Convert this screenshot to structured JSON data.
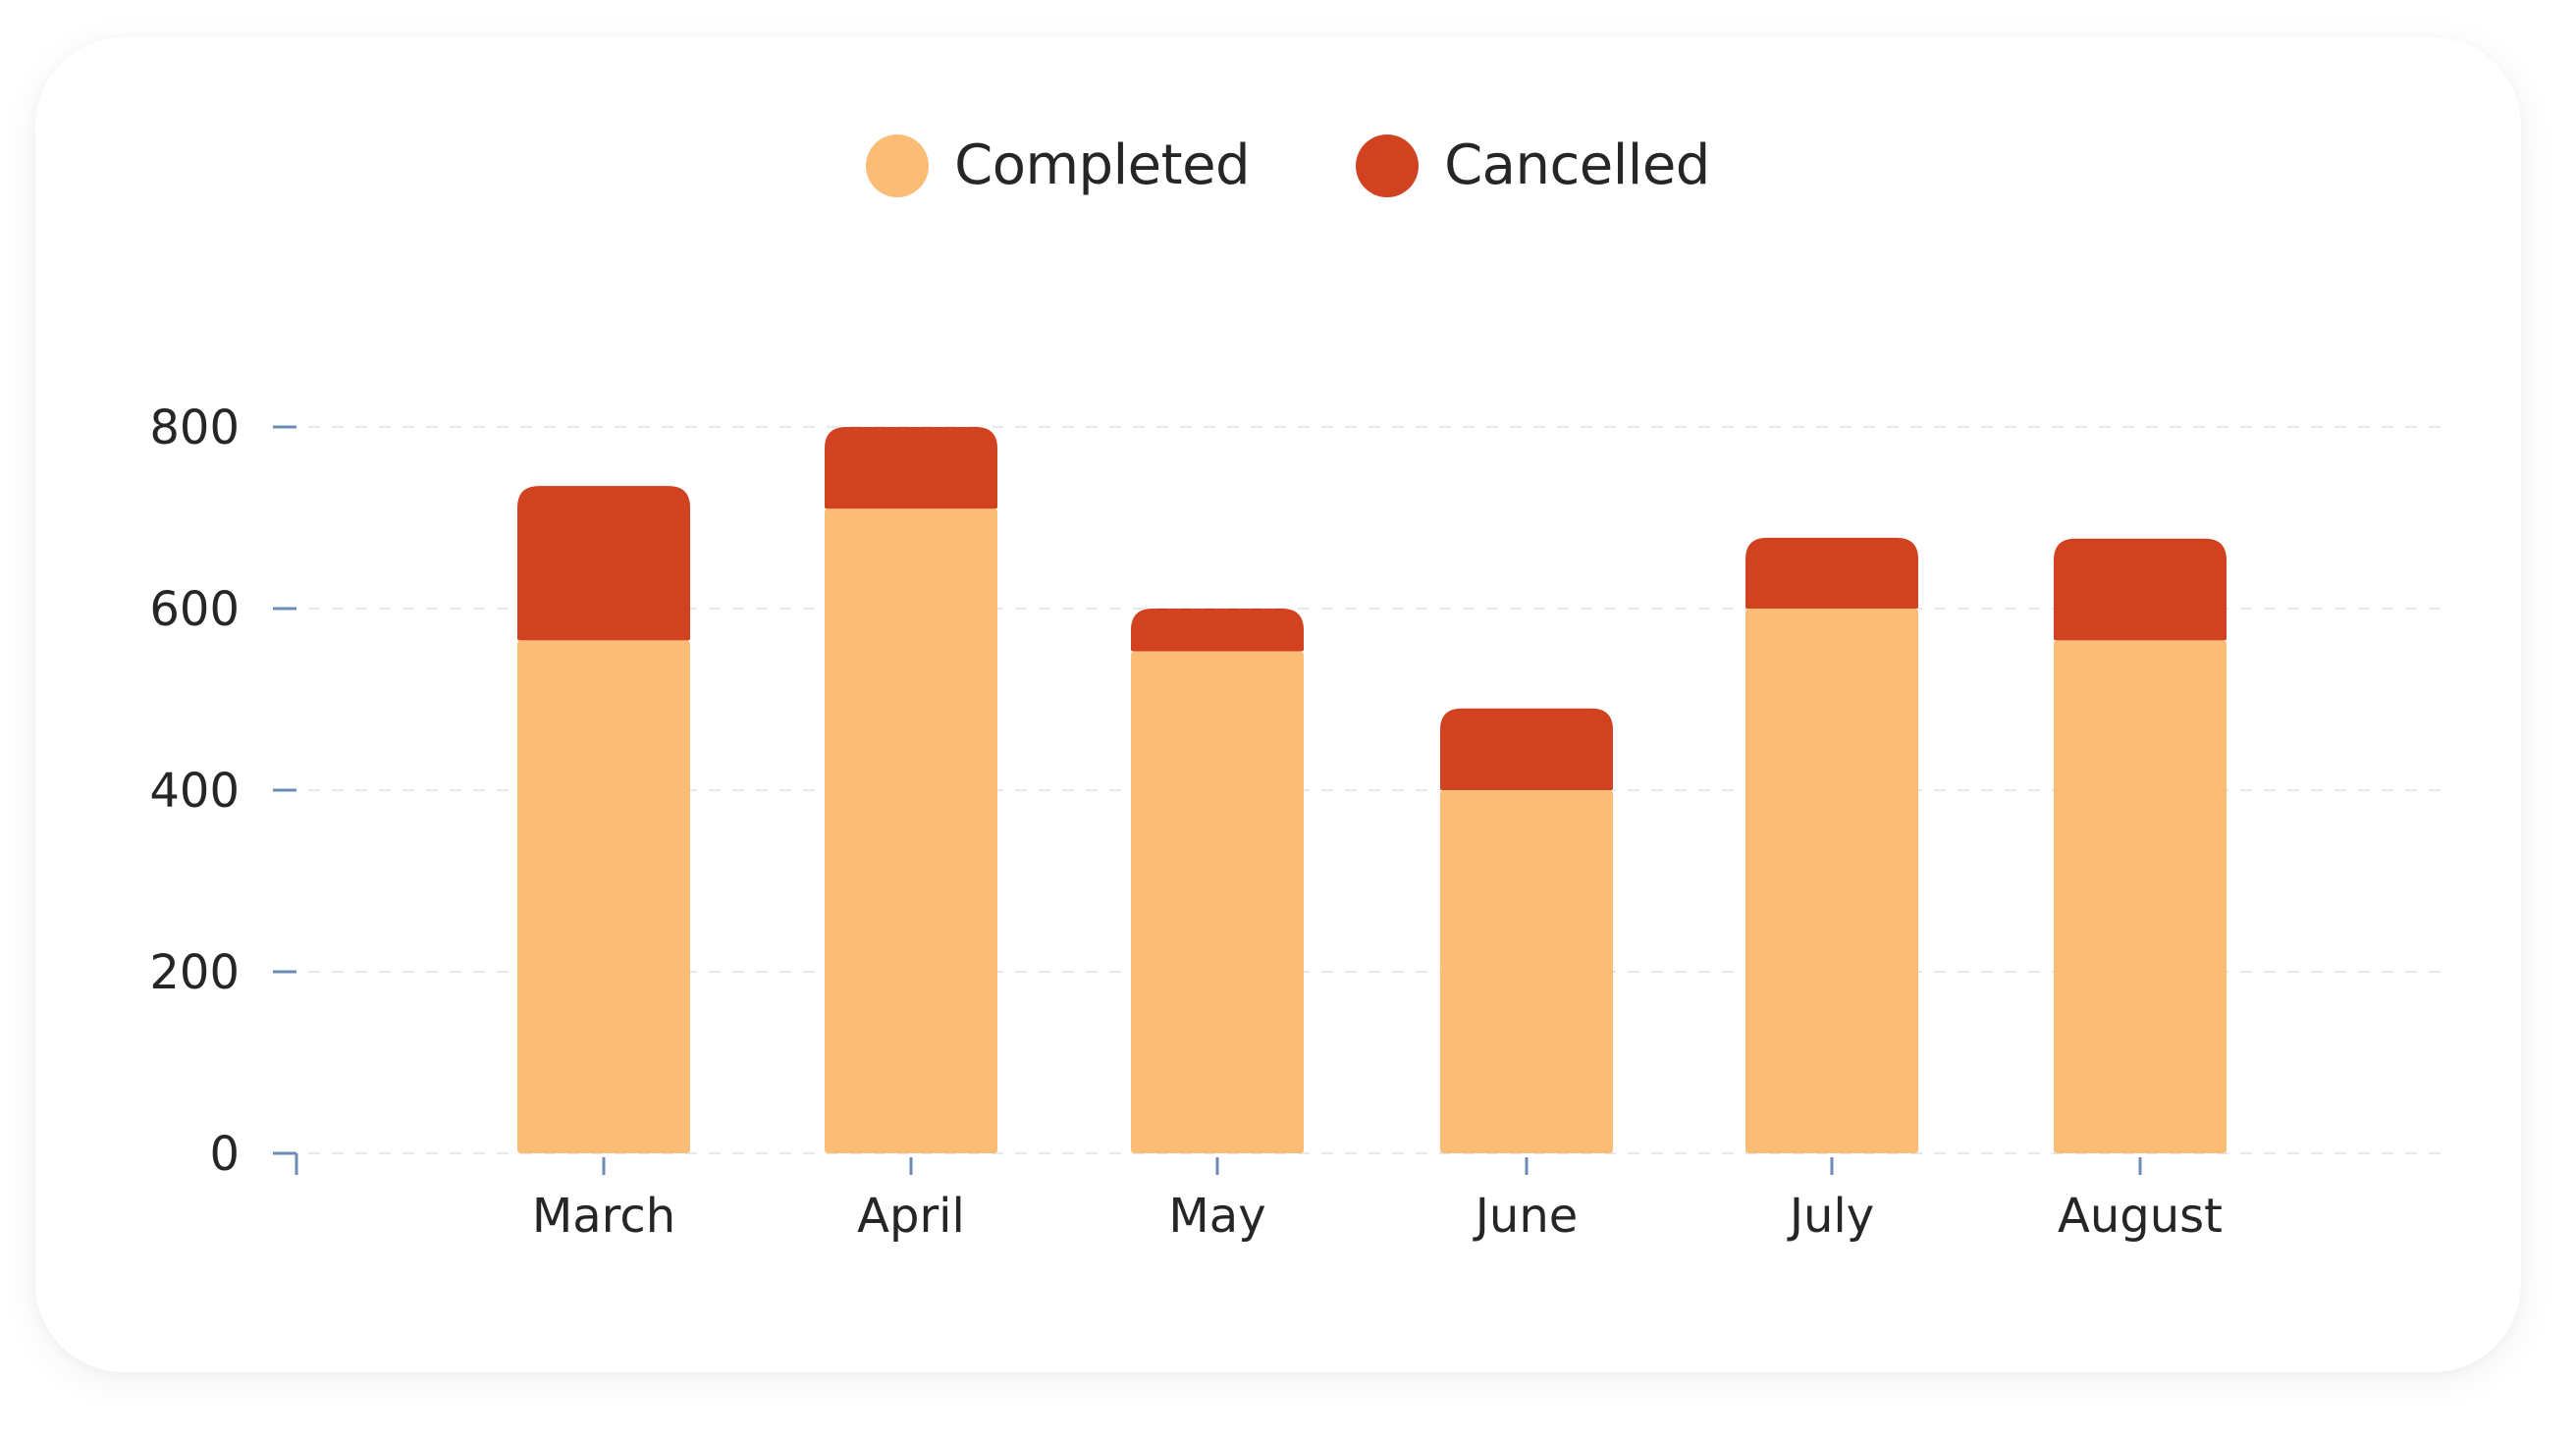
{
  "chart_data": {
    "type": "bar",
    "stacked": true,
    "categories": [
      "March",
      "April",
      "May",
      "June",
      "July",
      "August"
    ],
    "series": [
      {
        "name": "Completed",
        "color": "#FBBD76",
        "values": [
          565,
          710,
          553,
          400,
          600,
          565
        ]
      },
      {
        "name": "Cancelled",
        "color": "#D14221",
        "values": [
          170,
          90,
          47,
          90,
          78,
          112
        ]
      }
    ],
    "yticks": [
      "0",
      "200",
      "400",
      "600",
      "800"
    ],
    "ylim": [
      0,
      800
    ],
    "grid": true,
    "legend_position": "top-center",
    "title": "",
    "xlabel": "",
    "ylabel": ""
  }
}
